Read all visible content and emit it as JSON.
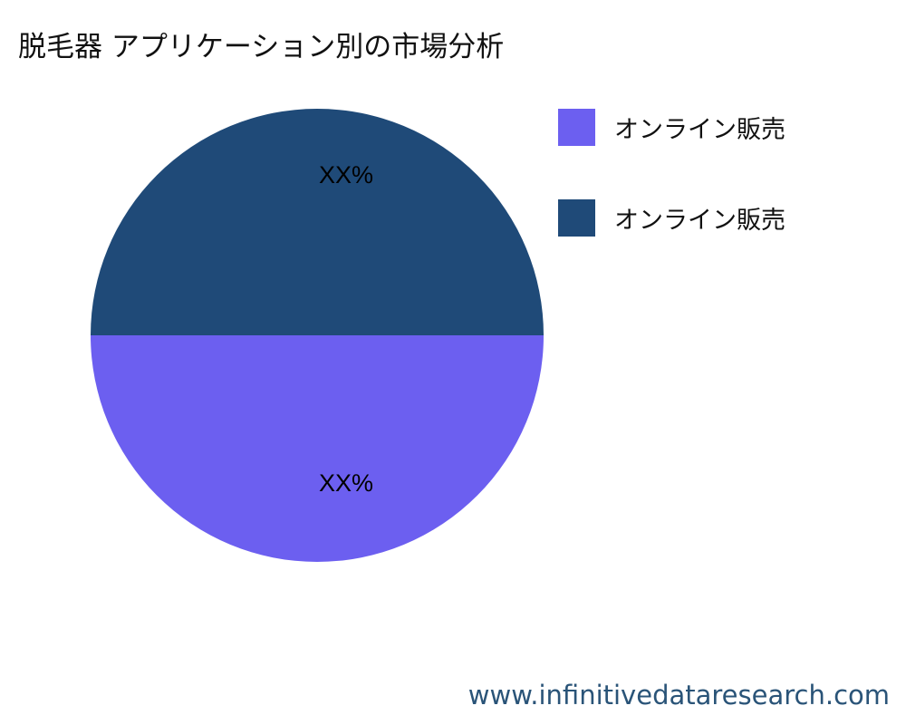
{
  "chart_data": {
    "type": "pie",
    "title": "脱毛器 アプリケーション別の市場分析",
    "slices": [
      {
        "label": "オンライン販売",
        "value": 50,
        "data_label": "XX%",
        "color": "#6c5ff0"
      },
      {
        "label": "オンライン販売",
        "value": 50,
        "data_label": "XX%",
        "color": "#1f4a78"
      }
    ],
    "legend_position": "right"
  },
  "watermark": "www.infinitivedataresearch.com"
}
